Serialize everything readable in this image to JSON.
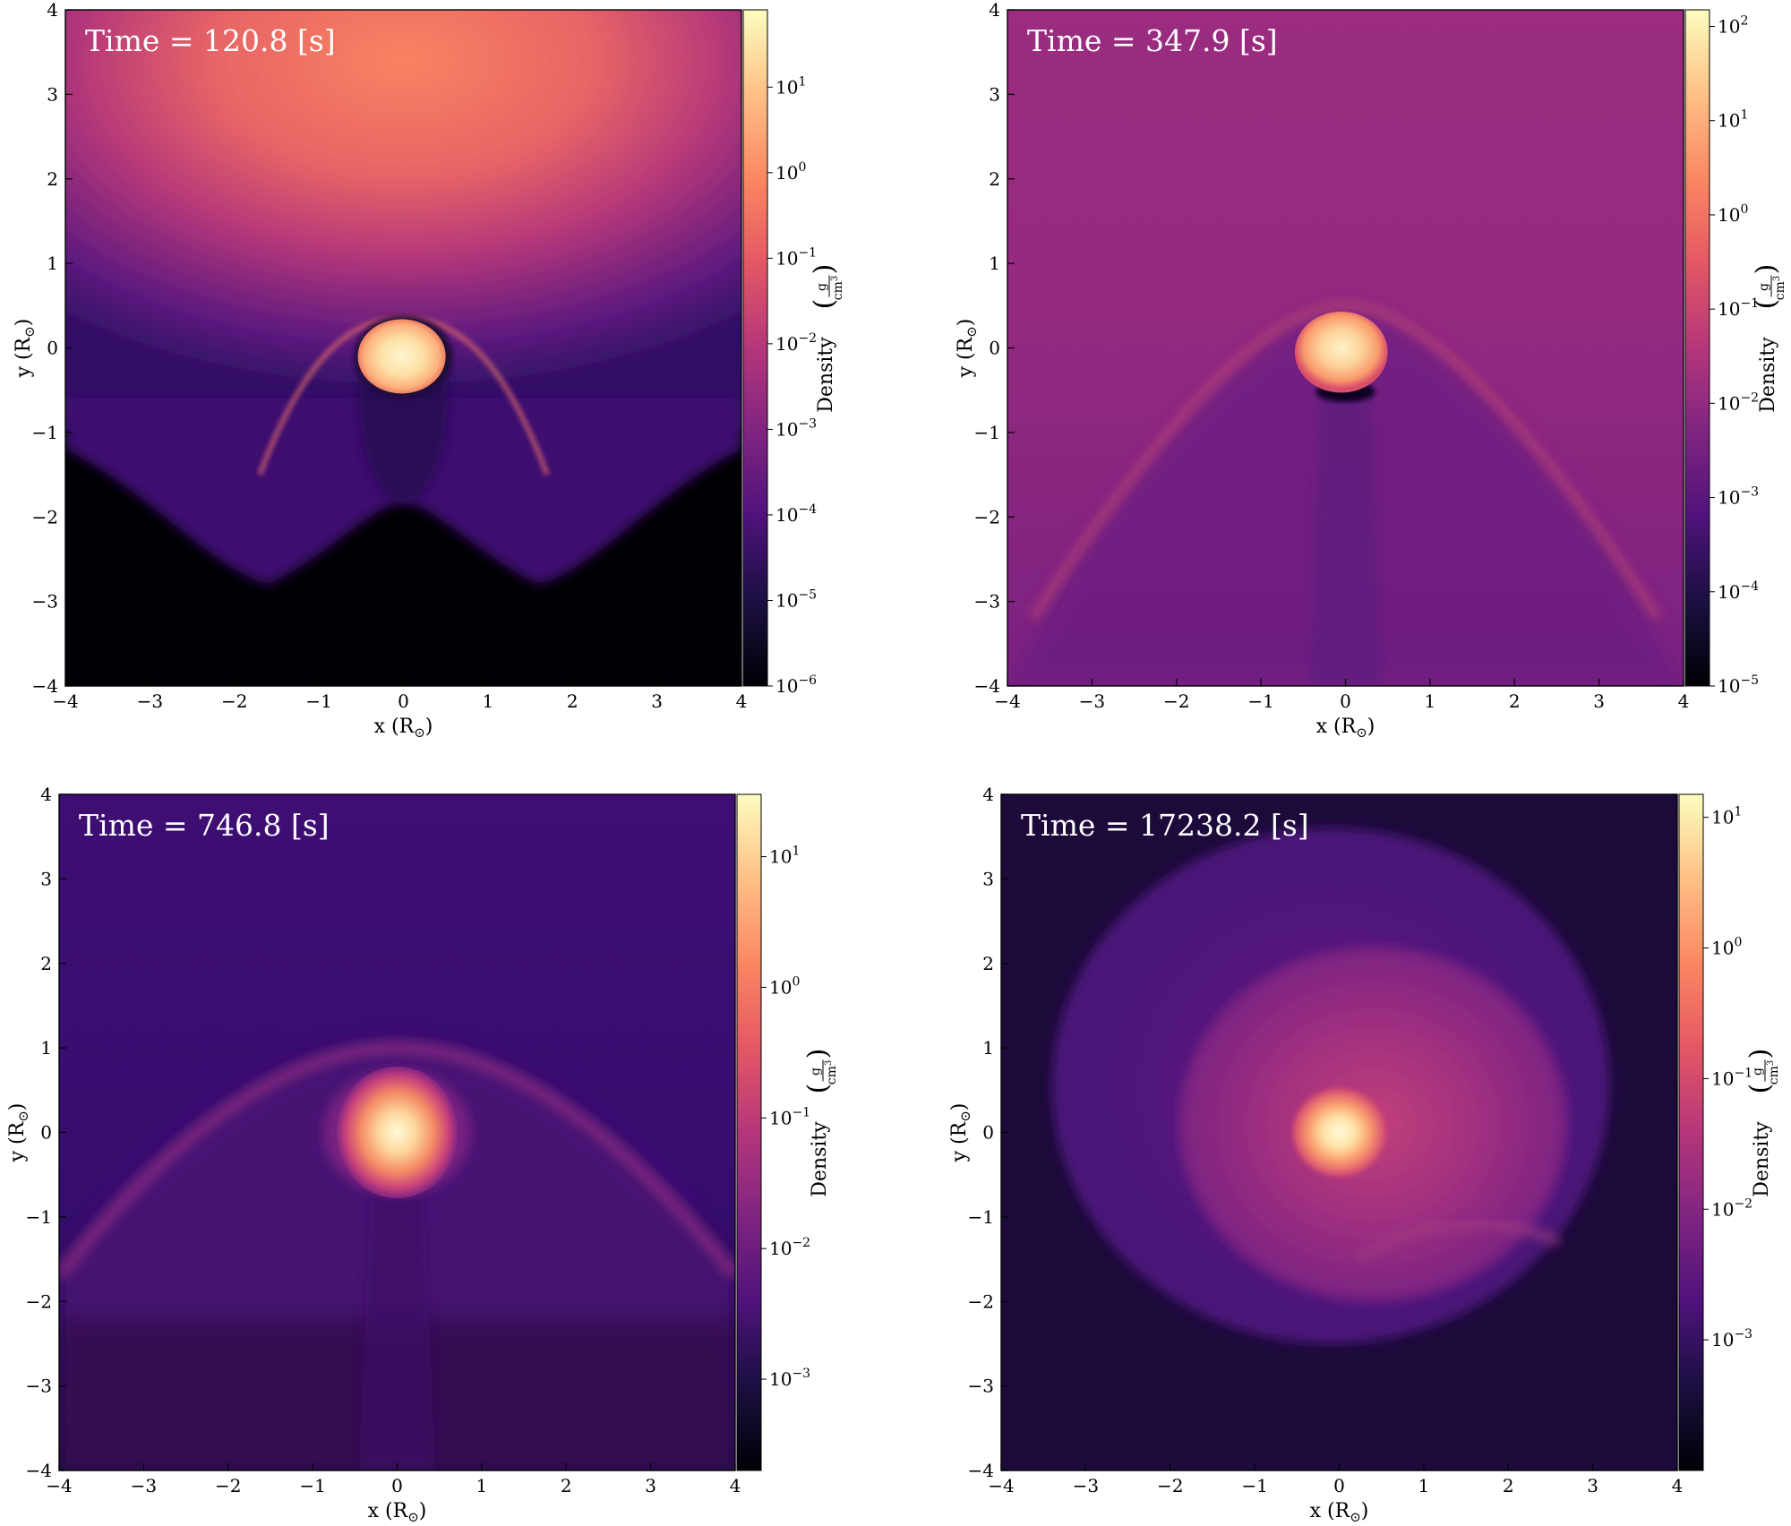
{
  "chart_data": [
    {
      "type": "heatmap",
      "time_label": "Time = 120.8 [s]",
      "xlabel": "x",
      "ylabel": "y",
      "unit_symbol": "R",
      "xlim": [
        -4,
        4
      ],
      "ylim": [
        -4,
        4
      ],
      "xticks": [
        "−4",
        "−3",
        "−2",
        "−1",
        "0",
        "1",
        "2",
        "3",
        "4"
      ],
      "yticks": [
        "−4",
        "−3",
        "−2",
        "−1",
        "0",
        "1",
        "2",
        "3",
        "4"
      ],
      "colorbar": {
        "label": "Density",
        "unit_num": "g",
        "unit_den": "cm",
        "unit_exp": "3",
        "scale": "log",
        "range": [
          1e-06,
          80
        ],
        "tick_exponents": [
          "1",
          "0",
          "−1",
          "−2",
          "−3",
          "−4",
          "−5",
          "−6"
        ]
      },
      "features": {
        "core_y": 0.0,
        "background": "dense cloud centred near y = 2, vacuum below y = −2"
      }
    },
    {
      "type": "heatmap",
      "time_label": "Time = 347.9 [s]",
      "xlabel": "x",
      "ylabel": "y",
      "unit_symbol": "R",
      "xlim": [
        -4,
        4
      ],
      "ylim": [
        -4,
        4
      ],
      "xticks": [
        "−4",
        "−3",
        "−2",
        "−1",
        "0",
        "1",
        "2",
        "3",
        "4"
      ],
      "yticks": [
        "−4",
        "−3",
        "−2",
        "−1",
        "0",
        "1",
        "2",
        "3",
        "4"
      ],
      "colorbar": {
        "label": "Density",
        "unit_num": "g",
        "unit_den": "cm",
        "unit_exp": "3",
        "scale": "log",
        "range": [
          1e-05,
          150
        ],
        "tick_exponents": [
          "2",
          "1",
          "0",
          "−1",
          "−2",
          "−3",
          "−4",
          "−5"
        ]
      },
      "features": {
        "core_y": 0.0,
        "background": "uniform medium density with bow shock"
      }
    },
    {
      "type": "heatmap",
      "time_label": "Time = 746.8 [s]",
      "xlabel": "x",
      "ylabel": "y",
      "unit_symbol": "R",
      "xlim": [
        -4,
        4
      ],
      "ylim": [
        -4,
        4
      ],
      "xticks": [
        "−4",
        "−3",
        "−2",
        "−1",
        "0",
        "1",
        "2",
        "3",
        "4"
      ],
      "yticks": [
        "−4",
        "−3",
        "−2",
        "−1",
        "0",
        "1",
        "2",
        "3",
        "4"
      ],
      "colorbar": {
        "label": "Density",
        "unit_num": "g",
        "unit_den": "cm",
        "unit_exp": "3",
        "scale": "log",
        "range": [
          0.0002,
          30
        ],
        "tick_exponents": [
          "1",
          "0",
          "−1",
          "−2",
          "−3"
        ]
      },
      "features": {
        "core_y": 0.0,
        "background": "low density with bow shock"
      }
    },
    {
      "type": "heatmap",
      "time_label": "Time = 17238.2 [s]",
      "xlabel": "x",
      "ylabel": "y",
      "unit_symbol": "R",
      "xlim": [
        -4,
        4
      ],
      "ylim": [
        -4,
        4
      ],
      "xticks": [
        "−4",
        "−3",
        "−2",
        "−1",
        "0",
        "1",
        "2",
        "3",
        "4"
      ],
      "yticks": [
        "−4",
        "−3",
        "−2",
        "−1",
        "0",
        "1",
        "2",
        "3",
        "4"
      ],
      "colorbar": {
        "label": "Density",
        "unit_num": "g",
        "unit_den": "cm",
        "unit_exp": "3",
        "scale": "log",
        "range": [
          0.0001,
          15
        ],
        "tick_exponents": [
          "1",
          "0",
          "−1",
          "−2",
          "−3"
        ]
      },
      "features": {
        "core_y": 0.0,
        "background": "spiral envelope around bound core"
      }
    }
  ]
}
